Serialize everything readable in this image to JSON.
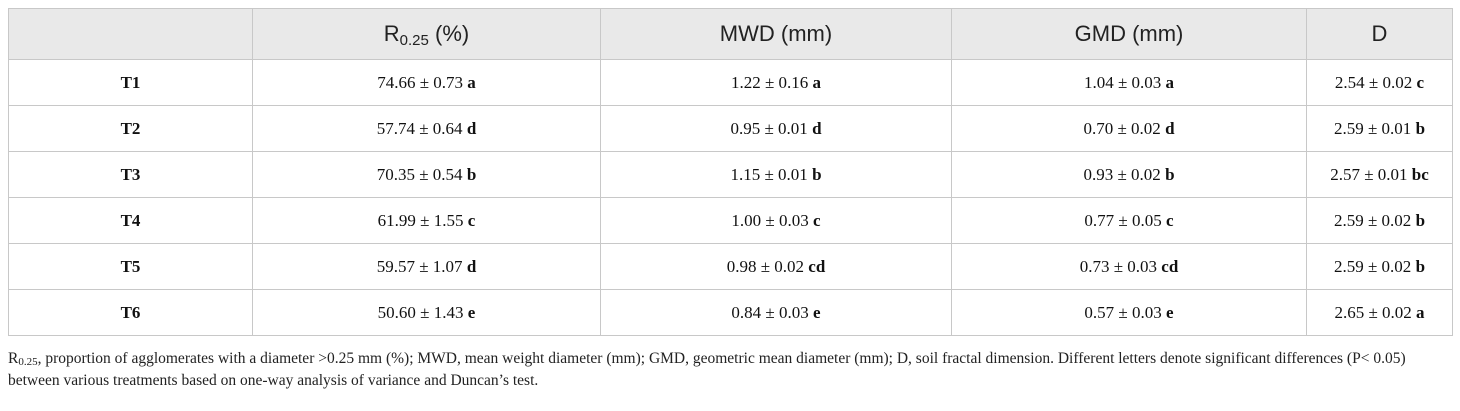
{
  "table": {
    "header": {
      "blank": "",
      "r025": {
        "base": "R",
        "sub": "0.25",
        "unit": " (%)"
      },
      "mwd": "MWD (mm)",
      "gmd": "GMD (mm)",
      "d": "D"
    },
    "rows": [
      {
        "treatment": "T1",
        "r025": "74.66 ± 0.73 ",
        "r025_sig": "a",
        "mwd": "1.22 ± 0.16 ",
        "mwd_sig": "a",
        "gmd": "1.04 ± 0.03 ",
        "gmd_sig": "a",
        "d": "2.54 ± 0.02 ",
        "d_sig": "c"
      },
      {
        "treatment": "T2",
        "r025": "57.74 ± 0.64 ",
        "r025_sig": "d",
        "mwd": "0.95 ± 0.01 ",
        "mwd_sig": "d",
        "gmd": "0.70 ± 0.02 ",
        "gmd_sig": "d",
        "d": "2.59 ± 0.01 ",
        "d_sig": "b"
      },
      {
        "treatment": "T3",
        "r025": "70.35 ± 0.54 ",
        "r025_sig": "b",
        "mwd": "1.15 ± 0.01 ",
        "mwd_sig": "b",
        "gmd": "0.93 ± 0.02 ",
        "gmd_sig": "b",
        "d": "2.57 ± 0.01 ",
        "d_sig": "bc"
      },
      {
        "treatment": "T4",
        "r025": "61.99 ± 1.55 ",
        "r025_sig": "c",
        "mwd": "1.00 ± 0.03 ",
        "mwd_sig": "c",
        "gmd": "0.77 ± 0.05 ",
        "gmd_sig": "c",
        "d": "2.59 ± 0.02 ",
        "d_sig": "b"
      },
      {
        "treatment": "T5",
        "r025": "59.57 ± 1.07 ",
        "r025_sig": "d",
        "mwd": "0.98 ± 0.02 ",
        "mwd_sig": "cd",
        "gmd": "0.73 ± 0.03 ",
        "gmd_sig": "cd",
        "d": "2.59 ± 0.02 ",
        "d_sig": "b"
      },
      {
        "treatment": "T6",
        "r025": "50.60 ± 1.43 ",
        "r025_sig": "e",
        "mwd": "0.84 ± 0.03 ",
        "mwd_sig": "e",
        "gmd": "0.57 ± 0.03 ",
        "gmd_sig": "e",
        "d": "2.65 ± 0.02 ",
        "d_sig": "a"
      }
    ]
  },
  "footnote": {
    "r_base": "R",
    "r_sub": "0.25",
    "text": ", proportion of agglomerates with a diameter >0.25 mm (%); MWD, mean weight diameter (mm); GMD, geometric mean diameter (mm); D, soil fractal dimension. Different letters denote significant differences (P< 0.05) between various treatments based on one-way analysis of variance and Duncan’s test."
  }
}
